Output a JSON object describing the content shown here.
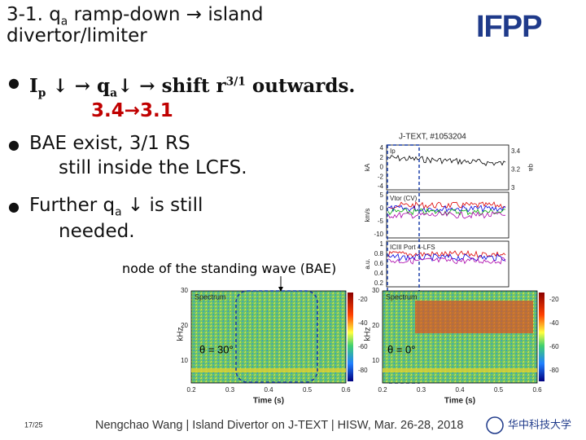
{
  "title": {
    "line1_a": "3-1. q",
    "line1_sub": "a",
    "line1_b": " ramp-down → island",
    "line2": "divertor/limiter"
  },
  "logo": "IFPP",
  "bullets": [
    {
      "p1": "I",
      "p2": "p",
      "p3": " ↓ → q",
      "p4": "a",
      "p5": "↓ → shift r",
      "p6": "3/1",
      "p7": " outwards.",
      "sub": "3.4→3.1"
    },
    {
      "line1": "BAE exist, 3/1 RS",
      "line2": "still inside the LCFS."
    },
    {
      "p1": "Further q",
      "p2": "a",
      "p3": " ↓ is still",
      "line2": "needed."
    }
  ],
  "annotation": "node of the standing wave (BAE)",
  "traces": {
    "title": "J-TEXT, #1053204",
    "panels": [
      {
        "label": "Ip",
        "unit": "kA",
        "yticks": [
          "4",
          "2",
          "0",
          "-2",
          "-4"
        ],
        "y2ticks": [
          "3.4",
          "3.2",
          "3"
        ],
        "y2label": "qa"
      },
      {
        "label": "Vtor (CV)",
        "unit": "km/s",
        "yticks": [
          "5",
          "0",
          "-5",
          "-10"
        ]
      },
      {
        "label": "ICIII Port 4-LFS",
        "unit": "a.u.",
        "yticks": [
          "1",
          "0.8",
          "0.6",
          "0.4",
          "0.2"
        ]
      }
    ]
  },
  "spectra": [
    {
      "label": "Spectrum",
      "ylabel": "kHz",
      "yticks": [
        "30",
        "20",
        "10"
      ],
      "cticks": [
        "-20",
        "-40",
        "-60",
        "-80"
      ],
      "xticks": [
        "0.2",
        "0.3",
        "0.4",
        "0.5",
        "0.6"
      ],
      "xlabel": "Time (s)",
      "angle": "θ = 30°"
    },
    {
      "label": "Spectrum",
      "ylabel": "kHz",
      "yticks": [
        "30",
        "20",
        "10"
      ],
      "cticks": [
        "-20",
        "-40",
        "-60",
        "-80"
      ],
      "xticks": [
        "0.2",
        "0.3",
        "0.4",
        "0.5",
        "0.6"
      ],
      "xlabel": "Time (s)",
      "angle": "θ = 0°"
    }
  ],
  "footer": {
    "page": "17/25",
    "text": "Nengchao Wang | Island Divertor on J-TEXT | HISW, Mar. 26-28, 2018",
    "university": "华中科技大学"
  }
}
